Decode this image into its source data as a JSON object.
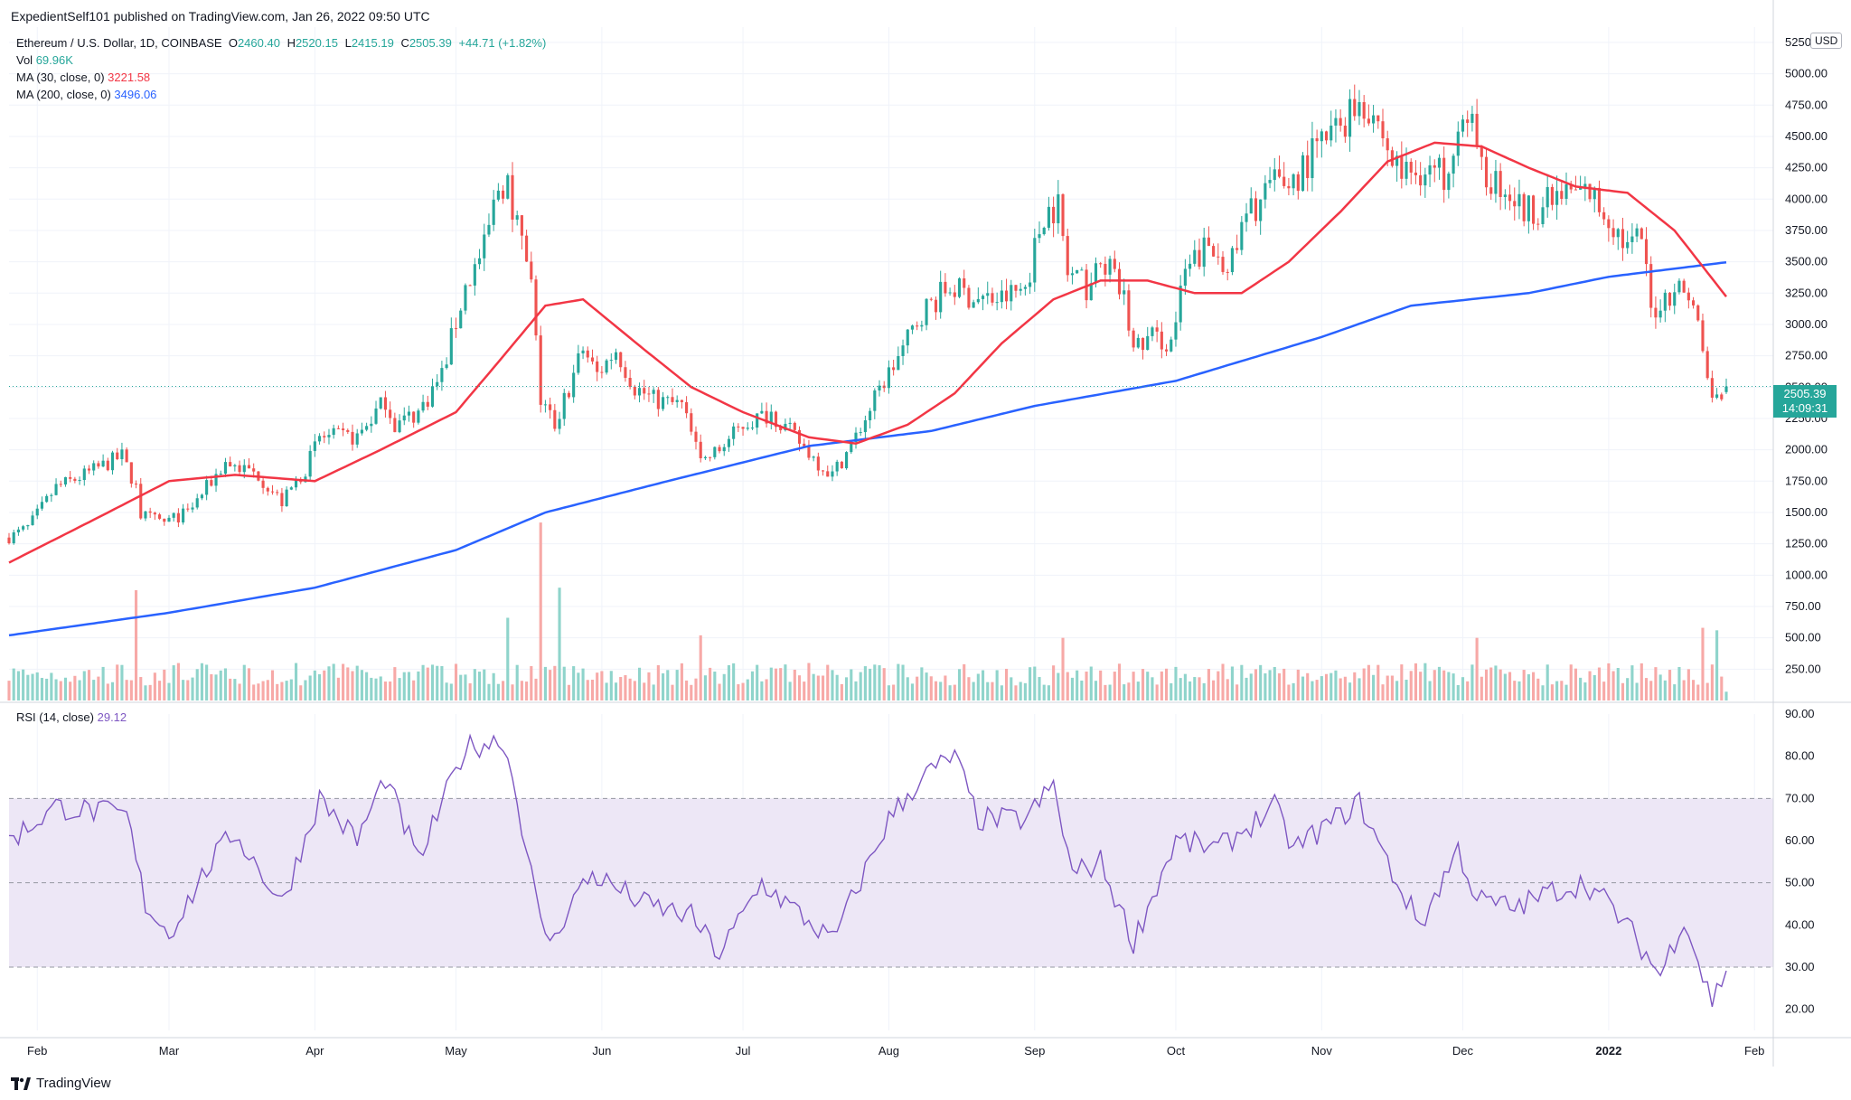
{
  "header": {
    "published_by": "ExpedientSelf101 published on TradingView.com, Jan 26, 2022 09:50 UTC"
  },
  "legend": {
    "symbol": "Ethereum / U.S. Dollar, 1D, COINBASE",
    "open_label": "O",
    "open": "2460.40",
    "high_label": "H",
    "high": "2520.15",
    "low_label": "L",
    "low": "2415.19",
    "close_label": "C",
    "close": "2505.39",
    "change": "+44.71 (+1.82%)",
    "vol_label": "Vol",
    "vol_value": "69.96K",
    "ma30_label": "MA (30, close, 0)",
    "ma30_value": "3221.58",
    "ma200_label": "MA (200, close, 0)",
    "ma200_value": "3496.06",
    "rsi_label": "RSI (14, close)",
    "rsi_value": "29.12"
  },
  "price_axis": {
    "currency": "USD",
    "last_price": "2505.39",
    "countdown": "14:09:31",
    "ticks": [
      "5250.00",
      "5000.00",
      "4750.00",
      "4500.00",
      "4250.00",
      "4000.00",
      "3750.00",
      "3500.00",
      "3250.00",
      "3000.00",
      "2750.00",
      "2500.00",
      "2250.00",
      "2000.00",
      "1750.00",
      "1500.00",
      "1250.00",
      "1000.00",
      "750.00",
      "500.00",
      "250.00"
    ],
    "rsi_ticks": [
      "90.00",
      "80.00",
      "70.00",
      "60.00",
      "50.00",
      "40.00",
      "30.00",
      "20.00"
    ]
  },
  "time_axis": {
    "labels": [
      "Feb",
      "Mar",
      "Apr",
      "May",
      "Jun",
      "Jul",
      "Aug",
      "Sep",
      "Oct",
      "Nov",
      "Dec",
      "2022",
      "Feb"
    ]
  },
  "footer": {
    "brand": "TradingView"
  },
  "colors": {
    "up": "#26a69a",
    "down": "#ef5350",
    "ma30": "#f23645",
    "ma200": "#2962ff",
    "rsi": "#7e57c2",
    "rsi_band": "#ede7f6",
    "vol_up": "#8fd4cb",
    "vol_down": "#f7a9a7"
  },
  "chart_data": {
    "type": "candlestick",
    "title": "Ethereum / U.S. Dollar, 1D, COINBASE",
    "x_start": "2021-01-26",
    "x_end": "2022-01-26",
    "ylim": [
      0,
      5300
    ],
    "rsi_ylim": [
      15,
      90
    ],
    "rsi_band": [
      30,
      70
    ],
    "close_path": [
      [
        "2021-01-26",
        1300
      ],
      [
        "2021-01-30",
        1380
      ],
      [
        "2021-02-05",
        1700
      ],
      [
        "2021-02-10",
        1780
      ],
      [
        "2021-02-19",
        1950
      ],
      [
        "2021-02-22",
        1700
      ],
      [
        "2021-02-23",
        1480
      ],
      [
        "2021-02-28",
        1420
      ],
      [
        "2021-03-05",
        1500
      ],
      [
        "2021-03-13",
        1900
      ],
      [
        "2021-03-20",
        1800
      ],
      [
        "2021-03-25",
        1580
      ],
      [
        "2021-03-30",
        1850
      ],
      [
        "2021-04-02",
        2100
      ],
      [
        "2021-04-10",
        2100
      ],
      [
        "2021-04-16",
        2400
      ],
      [
        "2021-04-18",
        2200
      ],
      [
        "2021-04-23",
        2300
      ],
      [
        "2021-04-28",
        2600
      ],
      [
        "2021-05-03",
        3300
      ],
      [
        "2021-05-07",
        3600
      ],
      [
        "2021-05-10",
        4100
      ],
      [
        "2021-05-12",
        4150
      ],
      [
        "2021-05-14",
        3800
      ],
      [
        "2021-05-17",
        3300
      ],
      [
        "2021-05-19",
        2400
      ],
      [
        "2021-05-22",
        2200
      ],
      [
        "2021-05-25",
        2500
      ],
      [
        "2021-05-28",
        2800
      ],
      [
        "2021-05-31",
        2600
      ],
      [
        "2021-06-04",
        2800
      ],
      [
        "2021-06-08",
        2500
      ],
      [
        "2021-06-12",
        2400
      ],
      [
        "2021-06-18",
        2350
      ],
      [
        "2021-06-22",
        1900
      ],
      [
        "2021-06-26",
        2000
      ],
      [
        "2021-07-01",
        2200
      ],
      [
        "2021-07-07",
        2300
      ],
      [
        "2021-07-12",
        2100
      ],
      [
        "2021-07-17",
        1900
      ],
      [
        "2021-07-20",
        1800
      ],
      [
        "2021-07-25",
        2100
      ],
      [
        "2021-07-31",
        2550
      ],
      [
        "2021-08-04",
        2800
      ],
      [
        "2021-08-08",
        3100
      ],
      [
        "2021-08-14",
        3300
      ],
      [
        "2021-08-20",
        3200
      ],
      [
        "2021-08-25",
        3200
      ],
      [
        "2021-08-30",
        3300
      ],
      [
        "2021-09-03",
        3900
      ],
      [
        "2021-09-06",
        3950
      ],
      [
        "2021-09-08",
        3400
      ],
      [
        "2021-09-12",
        3300
      ],
      [
        "2021-09-16",
        3500
      ],
      [
        "2021-09-20",
        3200
      ],
      [
        "2021-09-22",
        2800
      ],
      [
        "2021-09-26",
        2900
      ],
      [
        "2021-09-30",
        2850
      ],
      [
        "2021-10-03",
        3400
      ],
      [
        "2021-10-07",
        3600
      ],
      [
        "2021-10-13",
        3500
      ],
      [
        "2021-10-16",
        3850
      ],
      [
        "2021-10-21",
        4100
      ],
      [
        "2021-10-26",
        4150
      ],
      [
        "2021-10-30",
        4350
      ],
      [
        "2021-11-04",
        4550
      ],
      [
        "2021-11-09",
        4800
      ],
      [
        "2021-11-12",
        4700
      ],
      [
        "2021-11-16",
        4300
      ],
      [
        "2021-11-19",
        4200
      ],
      [
        "2021-11-23",
        4250
      ],
      [
        "2021-11-27",
        4200
      ],
      [
        "2021-11-30",
        4650
      ],
      [
        "2021-12-03",
        4550
      ],
      [
        "2021-12-05",
        4200
      ],
      [
        "2021-12-10",
        4100
      ],
      [
        "2021-12-14",
        3900
      ],
      [
        "2021-12-18",
        3950
      ],
      [
        "2021-12-24",
        4050
      ],
      [
        "2021-12-28",
        4050
      ],
      [
        "2022-01-02",
        3800
      ],
      [
        "2022-01-05",
        3600
      ],
      [
        "2022-01-08",
        3700
      ],
      [
        "2022-01-10",
        3100
      ],
      [
        "2022-01-15",
        3300
      ],
      [
        "2022-01-18",
        3250
      ],
      [
        "2022-01-20",
        3000
      ],
      [
        "2022-01-22",
        2550
      ],
      [
        "2022-01-24",
        2400
      ],
      [
        "2022-01-26",
        2505
      ]
    ],
    "ma30_path": [
      [
        "2021-01-26",
        1100
      ],
      [
        "2021-02-15",
        1480
      ],
      [
        "2021-03-01",
        1750
      ],
      [
        "2021-03-15",
        1800
      ],
      [
        "2021-04-01",
        1750
      ],
      [
        "2021-04-15",
        2000
      ],
      [
        "2021-05-01",
        2300
      ],
      [
        "2021-05-10",
        2700
      ],
      [
        "2021-05-20",
        3150
      ],
      [
        "2021-05-28",
        3200
      ],
      [
        "2021-06-10",
        2800
      ],
      [
        "2021-06-20",
        2500
      ],
      [
        "2021-07-01",
        2300
      ],
      [
        "2021-07-15",
        2100
      ],
      [
        "2021-07-25",
        2050
      ],
      [
        "2021-08-05",
        2200
      ],
      [
        "2021-08-15",
        2450
      ],
      [
        "2021-08-25",
        2850
      ],
      [
        "2021-09-05",
        3200
      ],
      [
        "2021-09-15",
        3350
      ],
      [
        "2021-09-25",
        3350
      ],
      [
        "2021-10-05",
        3250
      ],
      [
        "2021-10-15",
        3250
      ],
      [
        "2021-10-25",
        3500
      ],
      [
        "2021-11-05",
        3900
      ],
      [
        "2021-11-15",
        4300
      ],
      [
        "2021-11-25",
        4450
      ],
      [
        "2021-12-05",
        4420
      ],
      [
        "2021-12-15",
        4250
      ],
      [
        "2021-12-25",
        4100
      ],
      [
        "2022-01-05",
        4050
      ],
      [
        "2022-01-15",
        3750
      ],
      [
        "2022-01-26",
        3221.58
      ]
    ],
    "ma200_path": [
      [
        "2021-01-26",
        520
      ],
      [
        "2021-03-01",
        700
      ],
      [
        "2021-04-01",
        900
      ],
      [
        "2021-05-01",
        1200
      ],
      [
        "2021-05-20",
        1500
      ],
      [
        "2021-06-15",
        1750
      ],
      [
        "2021-07-15",
        2030
      ],
      [
        "2021-08-10",
        2150
      ],
      [
        "2021-09-01",
        2350
      ],
      [
        "2021-10-01",
        2550
      ],
      [
        "2021-11-01",
        2900
      ],
      [
        "2021-11-20",
        3150
      ],
      [
        "2021-12-15",
        3250
      ],
      [
        "2022-01-01",
        3380
      ],
      [
        "2022-01-26",
        3496.06
      ]
    ],
    "rsi_path": [
      [
        "2021-01-26",
        60
      ],
      [
        "2021-02-05",
        68
      ],
      [
        "2021-02-20",
        66
      ],
      [
        "2021-02-24",
        45
      ],
      [
        "2021-03-01",
        38
      ],
      [
        "2021-03-10",
        55
      ],
      [
        "2021-03-15",
        62
      ],
      [
        "2021-03-25",
        45
      ],
      [
        "2021-04-02",
        70
      ],
      [
        "2021-04-10",
        60
      ],
      [
        "2021-04-16",
        75
      ],
      [
        "2021-04-23",
        55
      ],
      [
        "2021-05-03",
        82
      ],
      [
        "2021-05-11",
        84
      ],
      [
        "2021-05-14",
        70
      ],
      [
        "2021-05-19",
        40
      ],
      [
        "2021-05-22",
        36
      ],
      [
        "2021-05-25",
        45
      ],
      [
        "2021-05-30",
        52
      ],
      [
        "2021-06-10",
        45
      ],
      [
        "2021-06-20",
        42
      ],
      [
        "2021-06-26",
        33
      ],
      [
        "2021-07-05",
        50
      ],
      [
        "2021-07-18",
        38
      ],
      [
        "2021-07-20",
        36
      ],
      [
        "2021-08-01",
        65
      ],
      [
        "2021-08-08",
        75
      ],
      [
        "2021-08-15",
        80
      ],
      [
        "2021-08-20",
        65
      ],
      [
        "2021-08-30",
        65
      ],
      [
        "2021-09-05",
        73
      ],
      [
        "2021-09-09",
        52
      ],
      [
        "2021-09-15",
        55
      ],
      [
        "2021-09-22",
        36
      ],
      [
        "2021-10-01",
        60
      ],
      [
        "2021-10-10",
        58
      ],
      [
        "2021-10-22",
        68
      ],
      [
        "2021-10-26",
        58
      ],
      [
        "2021-11-09",
        69
      ],
      [
        "2021-11-17",
        50
      ],
      [
        "2021-11-22",
        40
      ],
      [
        "2021-11-30",
        58
      ],
      [
        "2021-12-04",
        46
      ],
      [
        "2021-12-12",
        44
      ],
      [
        "2021-12-20",
        48
      ],
      [
        "2021-12-27",
        50
      ],
      [
        "2022-01-01",
        45
      ],
      [
        "2022-01-06",
        38
      ],
      [
        "2022-01-12",
        28
      ],
      [
        "2022-01-17",
        42
      ],
      [
        "2022-01-21",
        28
      ],
      [
        "2022-01-23",
        22
      ],
      [
        "2022-01-26",
        29.12
      ]
    ],
    "volume_spikes": [
      [
        "2021-02-22",
        880
      ],
      [
        "2021-05-19",
        1420
      ],
      [
        "2021-05-12",
        660
      ],
      [
        "2021-05-23",
        900
      ],
      [
        "2021-06-22",
        520
      ],
      [
        "2021-09-07",
        500
      ],
      [
        "2021-12-04",
        500
      ],
      [
        "2022-01-21",
        580
      ],
      [
        "2022-01-24",
        560
      ]
    ]
  }
}
